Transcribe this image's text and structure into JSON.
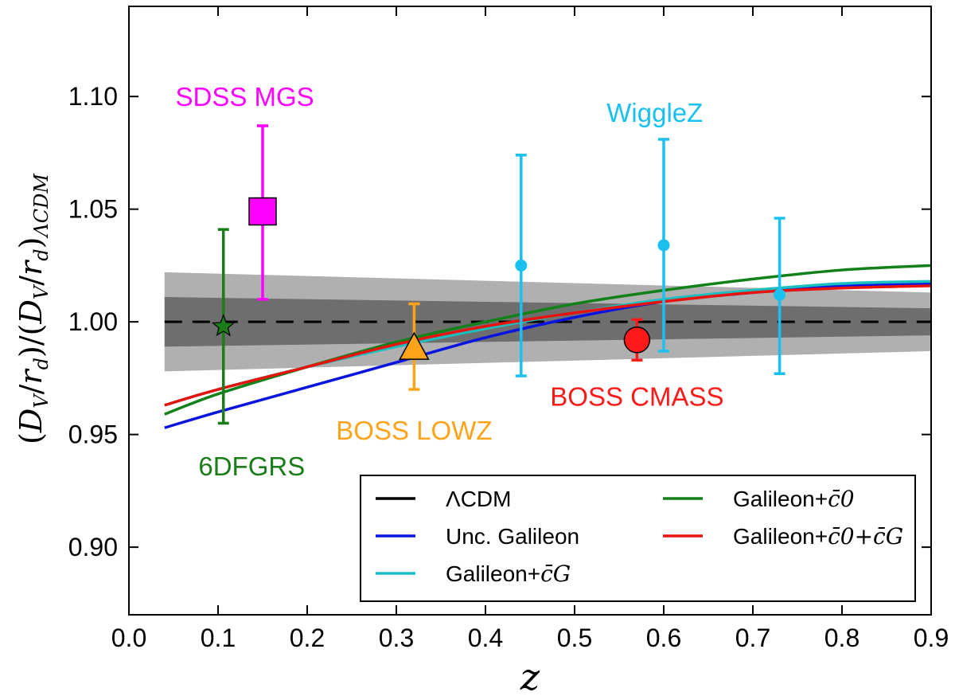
{
  "chart_data": {
    "type": "line",
    "xlabel": "z",
    "ylabel": "(D_V/r_d)/(D_V/r_d)_ΛCDM",
    "ylabel_parts": {
      "lead": "(",
      "d1": "D",
      "s1": "V",
      "slash1": "/",
      "r1": "r",
      "sd1": "d",
      "mid": ")/(",
      "d2": "D",
      "s2": "V",
      "slash2": "/",
      "r2": "r",
      "sd2": "d",
      "close": ")",
      "sub": "ΛCDM"
    },
    "xlim": [
      0.0,
      0.9
    ],
    "ylim": [
      0.87,
      1.14
    ],
    "xticks": [
      0.0,
      0.1,
      0.2,
      0.3,
      0.4,
      0.5,
      0.6,
      0.7,
      0.8,
      0.9
    ],
    "xtick_labels": [
      "0.0",
      "0.1",
      "0.2",
      "0.3",
      "0.4",
      "0.5",
      "0.6",
      "0.7",
      "0.8",
      "0.9"
    ],
    "yticks": [
      0.9,
      0.95,
      1.0,
      1.05,
      1.1
    ],
    "ytick_labels": [
      "0.90",
      "0.95",
      "1.00",
      "1.05",
      "1.10"
    ],
    "bands": [
      {
        "name": "outer",
        "color": "#b0b0b0",
        "x": [
          0.04,
          0.9
        ],
        "upper": [
          1.022,
          1.013
        ],
        "lower": [
          0.978,
          0.987
        ]
      },
      {
        "name": "inner",
        "color": "#6e6e6e",
        "x": [
          0.04,
          0.9
        ],
        "upper": [
          1.011,
          1.006
        ],
        "lower": [
          0.989,
          0.994
        ]
      }
    ],
    "series": [
      {
        "name": "ΛCDM",
        "color": "#000000",
        "dashed": true,
        "x": [
          0.04,
          0.9
        ],
        "y": [
          1.0,
          1.0
        ]
      },
      {
        "name": "Unc. Galileon",
        "color": "#0a14e0",
        "x": [
          0.04,
          0.1,
          0.2,
          0.3,
          0.4,
          0.5,
          0.6,
          0.7,
          0.8,
          0.9
        ],
        "y": [
          0.953,
          0.96,
          0.971,
          0.982,
          0.993,
          1.002,
          1.009,
          1.013,
          1.016,
          1.017
        ]
      },
      {
        "name": "Galileon+c̄_G",
        "color": "#1bbfbf",
        "x": [
          0.04,
          0.1,
          0.2,
          0.3,
          0.4,
          0.5,
          0.6,
          0.7,
          0.8,
          0.9
        ],
        "y": [
          0.963,
          0.97,
          0.98,
          0.989,
          0.997,
          1.004,
          1.01,
          1.014,
          1.017,
          1.018
        ]
      },
      {
        "name": "Galileon+c̄_0",
        "color": "#12811a",
        "x": [
          0.04,
          0.1,
          0.2,
          0.3,
          0.4,
          0.5,
          0.6,
          0.7,
          0.8,
          0.9
        ],
        "y": [
          0.959,
          0.968,
          0.98,
          0.991,
          1.0,
          1.008,
          1.014,
          1.019,
          1.023,
          1.025
        ]
      },
      {
        "name": "Galileon+c̄_0+c̄_G",
        "color": "#e8130d",
        "x": [
          0.04,
          0.1,
          0.2,
          0.3,
          0.4,
          0.5,
          0.6,
          0.7,
          0.8,
          0.9
        ],
        "y": [
          0.963,
          0.97,
          0.98,
          0.99,
          0.998,
          1.004,
          1.009,
          1.013,
          1.015,
          1.016
        ]
      }
    ],
    "datasets": [
      {
        "name": "6DFGRS",
        "color": "#1a7d1a",
        "marker": "star",
        "points": [
          {
            "x": 0.106,
            "y": 0.998,
            "lo": 0.955,
            "hi": 1.041
          }
        ],
        "label_pos": [
          0.078,
          0.936
        ]
      },
      {
        "name": "SDSS MGS",
        "color": "#ff00ff",
        "marker": "square",
        "points": [
          {
            "x": 0.15,
            "y": 1.049,
            "lo": 1.01,
            "hi": 1.087
          }
        ],
        "label_pos": [
          0.13,
          1.1
        ]
      },
      {
        "name": "BOSS LOWZ",
        "color": "#ffa31a",
        "marker": "triangle",
        "points": [
          {
            "x": 0.32,
            "y": 0.988,
            "lo": 0.97,
            "hi": 1.008
          }
        ],
        "label_pos": [
          0.32,
          0.952
        ]
      },
      {
        "name": "BOSS CMASS",
        "color": "#ff1a1a",
        "marker": "circle_big",
        "points": [
          {
            "x": 0.57,
            "y": 0.992,
            "lo": 0.983,
            "hi": 1.001
          }
        ],
        "label_pos": [
          0.57,
          0.967
        ]
      },
      {
        "name": "WiggleZ",
        "color": "#1ac1f0",
        "marker": "circle",
        "points": [
          {
            "x": 0.44,
            "y": 1.025,
            "lo": 0.976,
            "hi": 1.074
          },
          {
            "x": 0.6,
            "y": 1.034,
            "lo": 0.987,
            "hi": 1.081
          },
          {
            "x": 0.73,
            "y": 1.012,
            "lo": 0.977,
            "hi": 1.046
          }
        ],
        "label_pos": [
          0.59,
          1.093
        ]
      }
    ],
    "legend": {
      "placement": "bottom-right",
      "entries": [
        {
          "label": "ΛCDM",
          "math": false,
          "color": "#000000"
        },
        {
          "label": "Unc. Galileon",
          "math": false,
          "color": "#0a14e0"
        },
        {
          "label": "Galileon+",
          "math_tail": "c̄_G",
          "color": "#1bbfbf"
        },
        {
          "label": "Galileon+",
          "math_tail": "c̄_0",
          "color": "#12811a"
        },
        {
          "label": "Galileon+",
          "math_tail": "c̄_0+c̄_G",
          "color": "#e8130d"
        }
      ]
    }
  }
}
